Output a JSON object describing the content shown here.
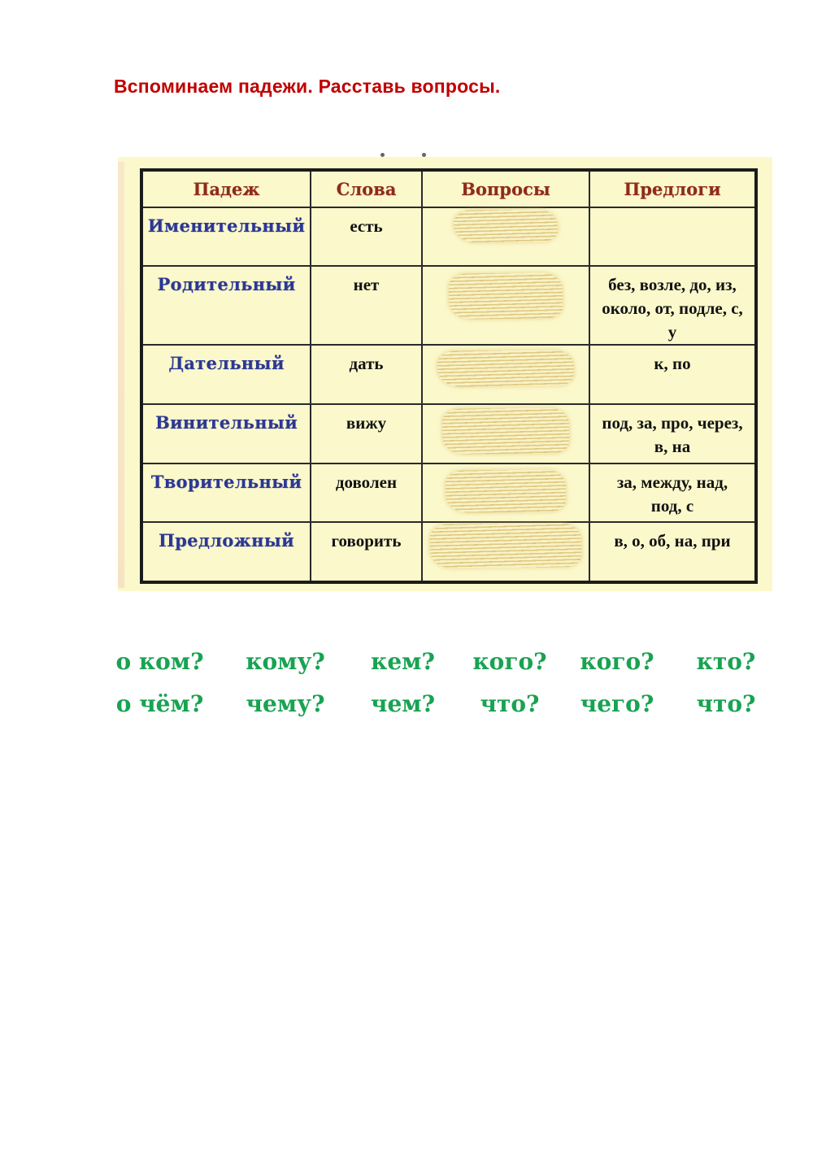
{
  "page": {
    "title": "Вспоминаем падежи. Расставь вопросы."
  },
  "table": {
    "headers": [
      "Падеж",
      "Слова",
      "Вопросы",
      "Предлоги"
    ],
    "rows": [
      {
        "case": "Именительный",
        "word": "есть",
        "questions": "",
        "prepositions": ""
      },
      {
        "case": "Родительный",
        "word": "нет",
        "questions": "",
        "prepositions": "без, возле, до, из, около, от, подле, с, у"
      },
      {
        "case": "Дательный",
        "word": "дать",
        "questions": "",
        "prepositions": "к, по"
      },
      {
        "case": "Винительный",
        "word": "вижу",
        "questions": "",
        "prepositions": "под, за, про, через, в, на"
      },
      {
        "case": "Творительный",
        "word": "доволен",
        "questions": "",
        "prepositions": "за, между, над, под, с"
      },
      {
        "case": "Предложный",
        "word": "говорить",
        "questions": "",
        "prepositions": "в, о, об, на, при"
      }
    ]
  },
  "question_words": {
    "row1": [
      "о ком?",
      "кому?",
      "кем?",
      "кого?",
      "кого?",
      "кто?"
    ],
    "row2": [
      "о чём?",
      "чему?",
      "чем?",
      "что?",
      "чего?",
      "что?"
    ]
  },
  "colors": {
    "title_red": "#C00000",
    "header_maroon": "#8F2B1D",
    "case_blue": "#2B3794",
    "table_background": "#FBF8CB",
    "answer_green": "#18A351",
    "scribble_gold": "#D6B864"
  }
}
